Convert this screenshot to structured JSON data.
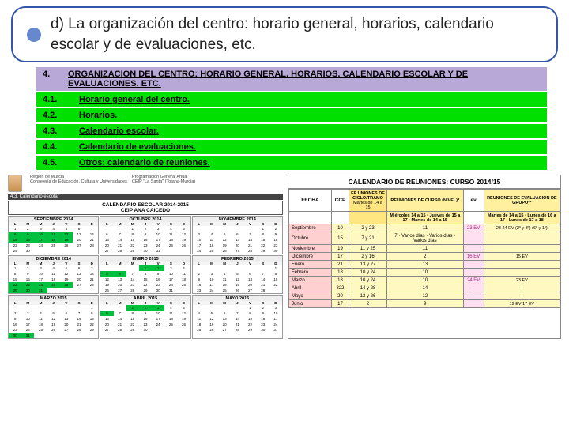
{
  "header": {
    "text": "d) La organización del centro: horario general, horarios, calendario escolar y de evaluaciones, etc."
  },
  "sections": {
    "main_num": "4.",
    "main_label": "ORGANIZACION DEL CENTRO: HORARIO GENERAL, HORARIOS, CALENDARIO ESCOLAR Y DE EVALUACIONES, ETC.",
    "items": [
      {
        "num": "4.1.",
        "label": "Horario general del centro."
      },
      {
        "num": "4.2.",
        "label": "Horarios."
      },
      {
        "num": "4.3.",
        "label": "Calendario escolar."
      },
      {
        "num": "4.4.",
        "label": "Calendario de evaluaciones."
      },
      {
        "num": "4.5.",
        "label": "Otros: calendario de reuniones."
      }
    ]
  },
  "calendar": {
    "sub1": "Región de Murcia",
    "sub2": "Consejería de Educación, Cultura y Universidades",
    "sub3": "Programación General Anual",
    "sub4": "CEIP \"La Santa\" (Totana-Murcia)",
    "strip": "4.3. Calendario escolar",
    "title1": "CALENDARIO ESCOLAR 2014-2015",
    "title2": "CEIP ANA CAICEDO",
    "day_heads": [
      "L",
      "M",
      "M",
      "J",
      "V",
      "S",
      "D"
    ],
    "months": [
      {
        "name": "SEPTIEMBRE 2014",
        "start": 0,
        "days": 30,
        "hl": [
          8,
          9,
          10,
          11,
          12,
          15,
          16,
          17,
          18,
          19
        ]
      },
      {
        "name": "OCTUBRE 2014",
        "start": 2,
        "days": 31,
        "hl": []
      },
      {
        "name": "NOVIEMBRE 2014",
        "start": 5,
        "days": 30,
        "hl": []
      },
      {
        "name": "DICIEMBRE 2014",
        "start": 0,
        "days": 31,
        "hl": [
          22,
          23,
          24,
          25,
          26,
          29,
          30,
          31
        ]
      },
      {
        "name": "ENERO 2015",
        "start": 3,
        "days": 31,
        "hl": [
          1,
          2,
          5,
          6
        ]
      },
      {
        "name": "FEBRERO 2015",
        "start": 6,
        "days": 28,
        "hl": []
      },
      {
        "name": "MARZO 2015",
        "start": 6,
        "days": 31,
        "hl": [
          30,
          31
        ]
      },
      {
        "name": "ABRIL 2015",
        "start": 2,
        "days": 30,
        "hl": [
          1,
          2,
          3,
          6
        ]
      },
      {
        "name": "MAYO 2015",
        "start": 4,
        "days": 31,
        "hl": []
      }
    ]
  },
  "reuniones": {
    "title": "CALENDARIO DE REUNIONES: CURSO 2014/15",
    "head": {
      "fecha": "FECHA",
      "ccp": "CCP",
      "ciclo_h1": "EF UNIONES DE CICLO/TRAMO",
      "ciclo_h2": "Martes de 14 a 15",
      "nivel_h1": "REUNIONES DE CURSO (NIVEL)*",
      "nivel_sub": [
        "Miércoles 14 a 15",
        "Jueves de 15 a 17",
        "Martes de 14 a 15"
      ],
      "ev_h": "ev",
      "grupo_h1": "REUNIONES DE EVALUACIÓN DE GRUPO**",
      "grupo_sub": [
        "Martes de 14 a 15",
        "Lunes de 16 a 17",
        "Lunes de 17 a 18"
      ]
    },
    "rows": [
      {
        "fecha": "Septiembre",
        "ccp": "10",
        "ciclo": "2 y 23",
        "nivel": [
          "11",
          "",
          "",
          ""
        ],
        "ev": "23 EV",
        "grp": [
          "23",
          "24 EV",
          "(2º y 3º) (6º y 1º)"
        ]
      },
      {
        "fecha": "Octubre",
        "ccp": "15",
        "ciclo": "7 y 21",
        "nivel": [
          "7",
          "Varios días",
          "Varios días",
          "Varios días"
        ],
        "ev": "",
        "grp": [
          "",
          "",
          ""
        ]
      },
      {
        "fecha": "Noviembre",
        "ccp": "19",
        "ciclo": "11 y 25",
        "nivel": [
          "11",
          "",
          "",
          ""
        ],
        "ev": "",
        "grp": [
          "",
          "",
          ""
        ]
      },
      {
        "fecha": "Diciembre",
        "ccp": "17",
        "ciclo": "2 y 16",
        "nivel": [
          "2",
          "",
          "",
          ""
        ],
        "ev": "16 EV",
        "grp": [
          "15 EV",
          "",
          ""
        ]
      },
      {
        "fecha": "Enero",
        "ccp": "21",
        "ciclo": "13 y 27",
        "nivel": [
          "13",
          "",
          "",
          ""
        ],
        "ev": "",
        "grp": [
          "",
          "",
          ""
        ]
      },
      {
        "fecha": "Febrero",
        "ccp": "18",
        "ciclo": "10 y 24",
        "nivel": [
          "10",
          "",
          "",
          ""
        ],
        "ev": "",
        "grp": [
          "",
          "",
          ""
        ]
      },
      {
        "fecha": "Marzo",
        "ccp": "18",
        "ciclo": "10 y 24",
        "nivel": [
          "10",
          "",
          "",
          ""
        ],
        "ev": "24 EV",
        "grp": [
          "23 EV",
          "",
          ""
        ]
      },
      {
        "fecha": "Abril",
        "ccp": "322",
        "ciclo": "14 y 28",
        "nivel": [
          "14",
          "",
          "",
          ""
        ],
        "ev": "-",
        "grp": [
          "-",
          "",
          ""
        ]
      },
      {
        "fecha": "Mayo",
        "ccp": "20",
        "ciclo": "12 y 26",
        "nivel": [
          "12",
          "",
          "",
          ""
        ],
        "ev": "-",
        "grp": [
          "-",
          "",
          ""
        ]
      },
      {
        "fecha": "Junio",
        "ccp": "17",
        "ciclo": "2",
        "nivel": [
          "9",
          "",
          "",
          ""
        ],
        "ev": "",
        "grp": [
          "19 EV",
          "17 EV",
          ""
        ]
      }
    ]
  },
  "colors": {
    "green": "#00e000",
    "purple": "#b8a8d8",
    "header_border": "#3355aa",
    "bullet": "#6688cc"
  }
}
